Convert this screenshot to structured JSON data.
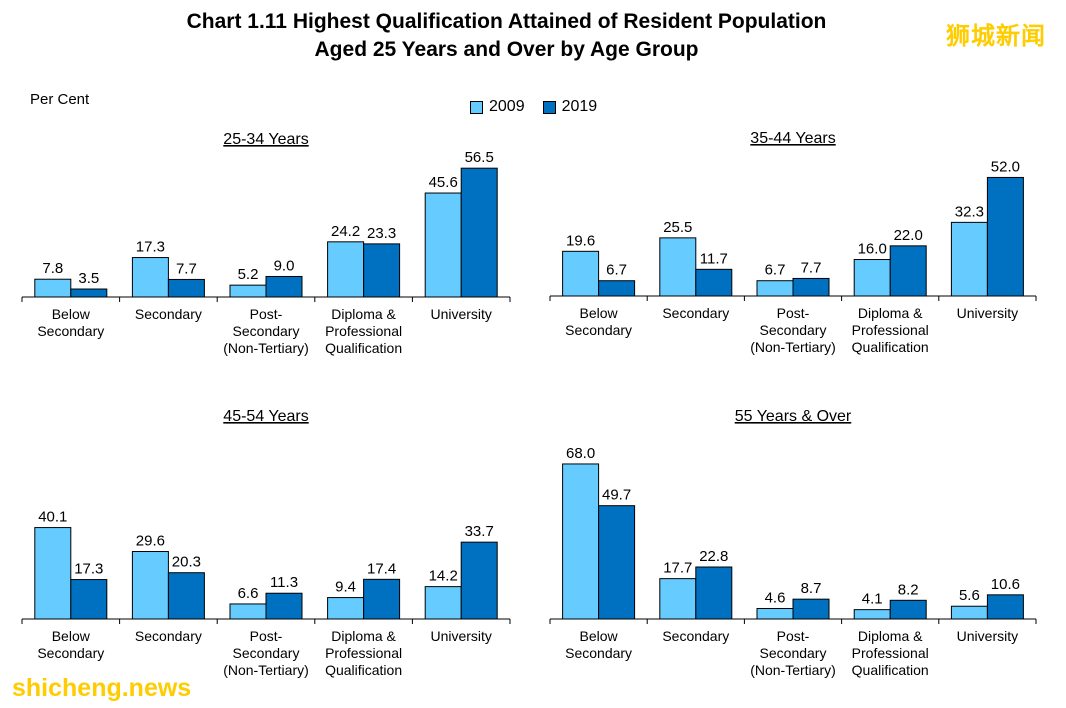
{
  "title_line1": "Chart 1.11  Highest Qualification Attained of Resident Population",
  "title_line2": "Aged 25 Years and Over by Age Group",
  "unit_label": "Per Cent",
  "legend": [
    {
      "label": "2009",
      "color": "#66ccff"
    },
    {
      "label": "2019",
      "color": "#0070c0"
    }
  ],
  "watermark_top": "狮城新闻",
  "watermark_bottom": "shicheng.news",
  "chart_data": [
    {
      "type": "bar",
      "title": "25-34 Years",
      "categories": [
        [
          "Below",
          "Secondary"
        ],
        [
          "Secondary"
        ],
        [
          "Post-",
          "Secondary",
          "(Non-Tertiary)"
        ],
        [
          "Diploma &",
          "Professional",
          "Qualification"
        ],
        [
          "University"
        ]
      ],
      "series": [
        {
          "name": "2009",
          "values": [
            7.8,
            17.3,
            5.2,
            24.2,
            45.6
          ]
        },
        {
          "name": "2019",
          "values": [
            3.5,
            7.7,
            9.0,
            23.3,
            56.5
          ]
        }
      ]
    },
    {
      "type": "bar",
      "title": "35-44 Years",
      "categories": [
        [
          "Below",
          "Secondary"
        ],
        [
          "Secondary"
        ],
        [
          "Post-",
          "Secondary",
          "(Non-Tertiary)"
        ],
        [
          "Diploma &",
          "Professional",
          "Qualification"
        ],
        [
          "University"
        ]
      ],
      "series": [
        {
          "name": "2009",
          "values": [
            19.6,
            25.5,
            6.7,
            16.0,
            32.3
          ]
        },
        {
          "name": "2019",
          "values": [
            6.7,
            11.7,
            7.7,
            22.0,
            52.0
          ]
        }
      ]
    },
    {
      "type": "bar",
      "title": "45-54 Years",
      "categories": [
        [
          "Below",
          "Secondary"
        ],
        [
          "Secondary"
        ],
        [
          "Post-",
          "Secondary",
          "(Non-Tertiary)"
        ],
        [
          "Diploma &",
          "Professional",
          "Qualification"
        ],
        [
          "University"
        ]
      ],
      "series": [
        {
          "name": "2009",
          "values": [
            40.1,
            29.6,
            6.6,
            9.4,
            14.2
          ]
        },
        {
          "name": "2019",
          "values": [
            17.3,
            20.3,
            11.3,
            17.4,
            33.7
          ]
        }
      ]
    },
    {
      "type": "bar",
      "title": "55 Years & Over",
      "categories": [
        [
          "Below",
          "Secondary"
        ],
        [
          "Secondary"
        ],
        [
          "Post-",
          "Secondary",
          "(Non-Tertiary)"
        ],
        [
          "Diploma &",
          "Professional",
          "Qualification"
        ],
        [
          "University"
        ]
      ],
      "series": [
        {
          "name": "2009",
          "values": [
            68.0,
            17.7,
            4.6,
            4.1,
            5.6
          ]
        },
        {
          "name": "2019",
          "values": [
            49.7,
            22.8,
            8.7,
            8.2,
            10.6
          ]
        }
      ]
    }
  ]
}
